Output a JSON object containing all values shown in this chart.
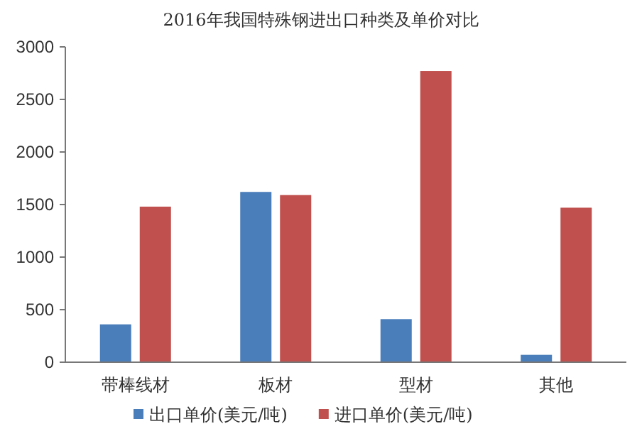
{
  "chart_data": {
    "type": "bar",
    "title": "2016年我国特殊钢进出口种类及单价对比",
    "categories": [
      "带棒线材",
      "板材",
      "型材",
      "其他"
    ],
    "series": [
      {
        "name": "出口单价(美元/吨)",
        "color": "#4a7ebb",
        "values": [
          360,
          1620,
          410,
          70
        ]
      },
      {
        "name": "进口单价(美元/吨)",
        "color": "#c0504d",
        "values": [
          1480,
          1590,
          2770,
          1470
        ]
      }
    ],
    "ylim": [
      0,
      3000
    ],
    "yticks": [
      0,
      500,
      1000,
      1500,
      2000,
      2500,
      3000
    ],
    "grid": false,
    "legend": "bottom"
  }
}
